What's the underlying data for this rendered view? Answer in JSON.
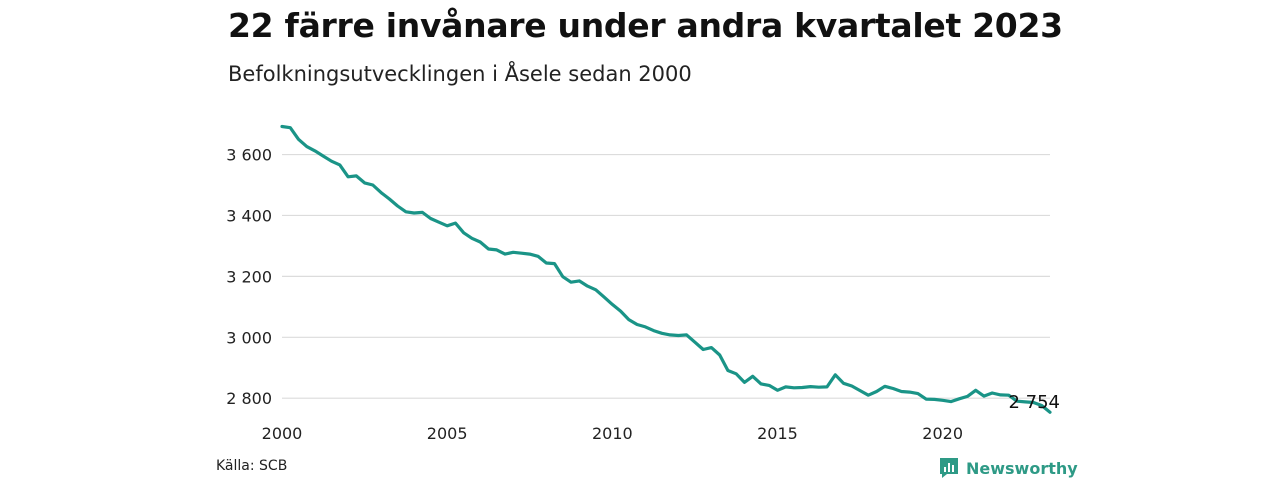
{
  "title": "22 färre invånare under andra kvartalet 2023",
  "subtitle": "Befolkningsutvecklingen i Åsele sedan 2000",
  "source": "Källa: SCB",
  "brand": {
    "name": "Newsworthy",
    "icon": "newsworthy-logo-icon",
    "color": "#2e9a86"
  },
  "chart_data": {
    "type": "line",
    "title": "22 färre invånare under andra kvartalet 2023",
    "subtitle": "Befolkningsutvecklingen i Åsele sedan 2000",
    "xlabel": "",
    "ylabel": "",
    "xlim": [
      2000,
      2023.25
    ],
    "ylim": [
      2735,
      3720
    ],
    "grid": true,
    "line_color": "#1a9487",
    "x_ticks": [
      {
        "value": 2000,
        "label": "2000"
      },
      {
        "value": 2005,
        "label": "2005"
      },
      {
        "value": 2010,
        "label": "2010"
      },
      {
        "value": 2015,
        "label": "2015"
      },
      {
        "value": 2020,
        "label": "2020"
      }
    ],
    "y_ticks": [
      {
        "value": 2800,
        "label": "2 800"
      },
      {
        "value": 3000,
        "label": "3 000"
      },
      {
        "value": 3200,
        "label": "3 200"
      },
      {
        "value": 3400,
        "label": "3 400"
      },
      {
        "value": 3600,
        "label": "3 600"
      }
    ],
    "series": [
      {
        "x": [
          2000,
          2000.25,
          2000.5,
          2000.75,
          2001,
          2001.25,
          2001.5,
          2001.75,
          2002,
          2002.25,
          2002.5,
          2002.75,
          2003,
          2003.25,
          2003.5,
          2003.75,
          2004,
          2004.25,
          2004.5,
          2004.75,
          2005,
          2005.25,
          2005.5,
          2005.75,
          2006,
          2006.25,
          2006.5,
          2006.75,
          2007,
          2007.25,
          2007.5,
          2007.75,
          2008,
          2008.25,
          2008.5,
          2008.75,
          2009,
          2009.25,
          2009.5,
          2009.75,
          2010,
          2010.25,
          2010.5,
          2010.75,
          2011,
          2011.25,
          2011.5,
          2011.75,
          2012,
          2012.25,
          2012.5,
          2012.75,
          2013,
          2013.25,
          2013.5,
          2013.75,
          2014,
          2014.25,
          2014.5,
          2014.75,
          2015,
          2015.25,
          2015.5,
          2015.75,
          2016,
          2016.25,
          2016.5,
          2016.75,
          2017,
          2017.25,
          2017.5,
          2017.75,
          2018,
          2018.25,
          2018.5,
          2018.75,
          2019,
          2019.25,
          2019.5,
          2019.75,
          2020,
          2020.25,
          2020.5,
          2020.75,
          2021,
          2021.25,
          2021.5,
          2021.75,
          2022,
          2022.25,
          2022.5,
          2022.75,
          2023,
          2023.25
        ],
        "values": [
          3692,
          3688,
          3650,
          3626,
          3612,
          3595,
          3578,
          3566,
          3527,
          3530,
          3507,
          3500,
          3475,
          3454,
          3431,
          3412,
          3408,
          3410,
          3390,
          3378,
          3366,
          3375,
          3343,
          3325,
          3313,
          3290,
          3287,
          3273,
          3279,
          3276,
          3273,
          3266,
          3244,
          3242,
          3199,
          3181,
          3185,
          3168,
          3156,
          3132,
          3108,
          3086,
          3058,
          3042,
          3034,
          3022,
          3013,
          3008,
          3006,
          3008,
          2984,
          2960,
          2966,
          2942,
          2891,
          2880,
          2852,
          2872,
          2847,
          2842,
          2826,
          2837,
          2834,
          2835,
          2838,
          2836,
          2837,
          2877,
          2849,
          2840,
          2825,
          2810,
          2822,
          2839,
          2832,
          2822,
          2820,
          2815,
          2797,
          2796,
          2793,
          2789,
          2798,
          2806,
          2826,
          2807,
          2817,
          2811,
          2810,
          2790,
          2788,
          2786,
          2776,
          2754
        ]
      }
    ],
    "annotations": [
      {
        "x": 2023.25,
        "y": 2754,
        "text": "2 754"
      }
    ]
  }
}
